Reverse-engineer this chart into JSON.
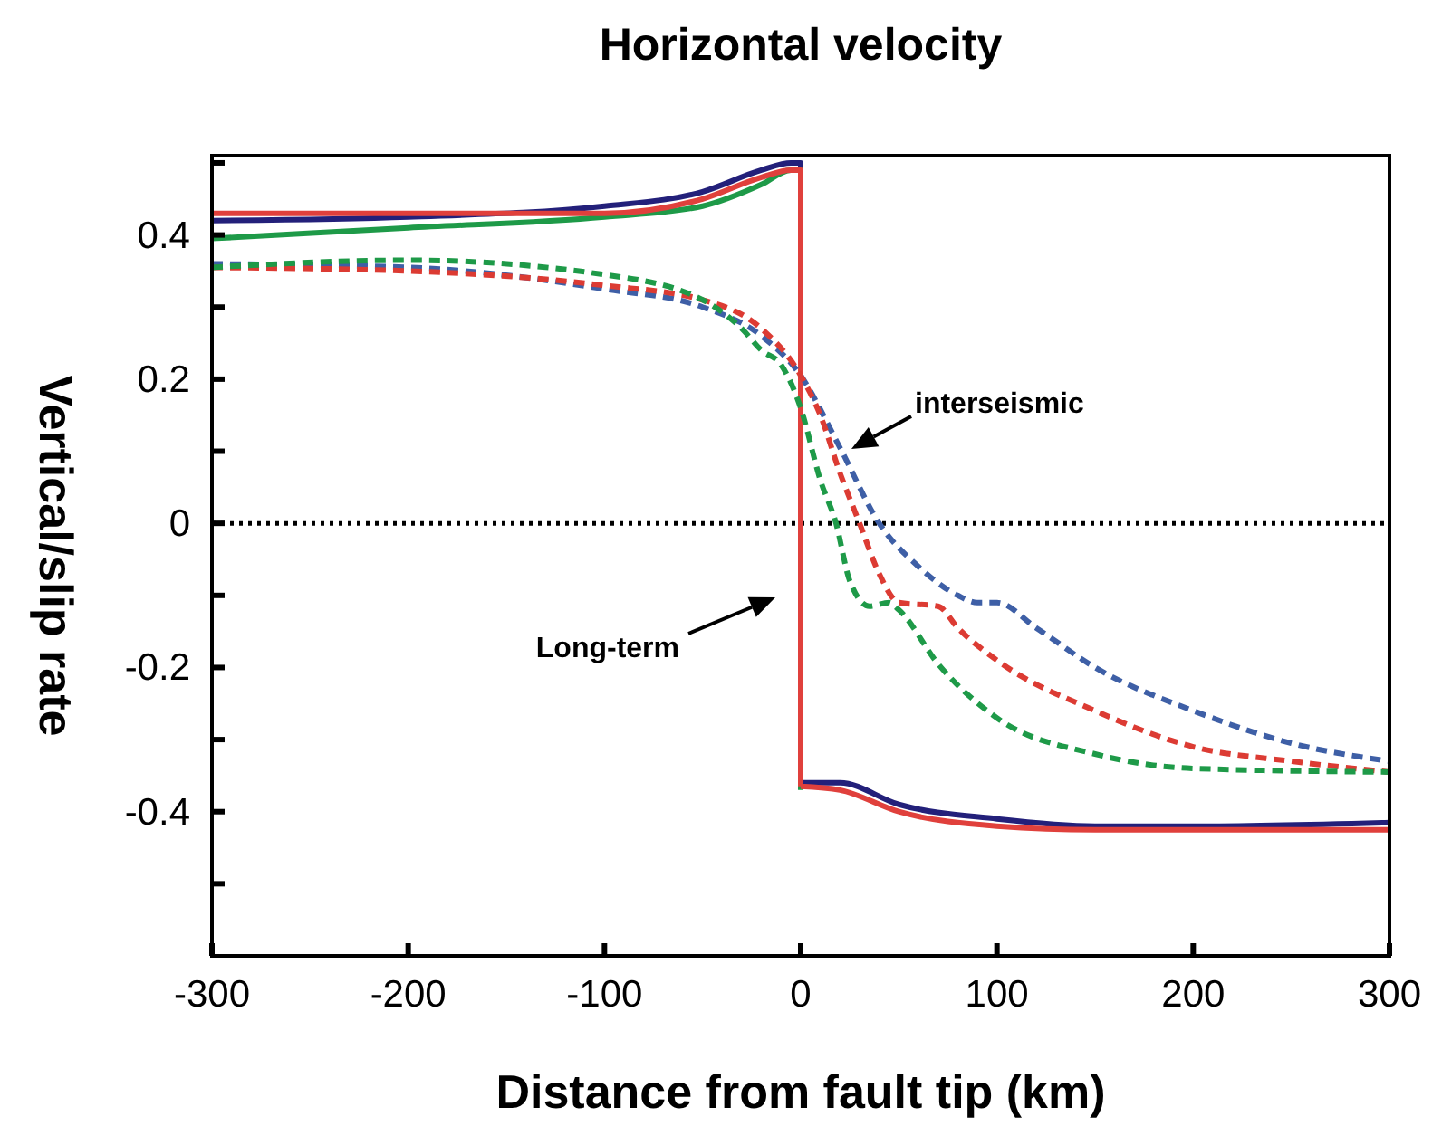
{
  "chart_data": {
    "type": "line",
    "title": "Horizontal velocity",
    "xlabel": "Distance from fault tip (km)",
    "ylabel": "Vertical/slip rate",
    "xlim": [
      -300,
      300
    ],
    "xticks": [
      -300,
      -200,
      -100,
      0,
      100,
      200,
      300
    ],
    "ylim": [
      -0.6,
      0.51
    ],
    "yticks": [
      {
        "value": -0.5,
        "label": null
      },
      {
        "value": -0.4,
        "label": "-0.4"
      },
      {
        "value": -0.3,
        "label": null
      },
      {
        "value": -0.2,
        "label": "-0.2"
      },
      {
        "value": -0.1,
        "label": null
      },
      0,
      {
        "value": 0.1,
        "label": null
      },
      {
        "value": 0.2,
        "label": "0.2"
      },
      {
        "value": 0.3,
        "label": null
      },
      {
        "value": 0.4,
        "label": "0.4"
      },
      {
        "value": 0.5,
        "label": null
      }
    ],
    "grid": false,
    "marker": "none",
    "series": [
      {
        "color": "#23207a",
        "line_style": "solid",
        "x": [
          -300,
          -200,
          -100,
          -50,
          -20,
          -5,
          0,
          0,
          20,
          50,
          100,
          150,
          200,
          300
        ],
        "values": [
          0.42,
          0.425,
          0.44,
          0.46,
          0.49,
          0.5,
          0.5,
          -0.36,
          -0.36,
          -0.39,
          -0.41,
          -0.42,
          -0.42,
          -0.415
        ]
      },
      {
        "color": "#1e9a48",
        "line_style": "solid",
        "x": [
          -300,
          -200,
          -100,
          -50,
          -20,
          -5,
          0,
          0
        ],
        "values": [
          0.395,
          0.41,
          0.425,
          0.44,
          0.47,
          0.49,
          0.49,
          -0.37
        ]
      },
      {
        "color": "#e0403c",
        "line_style": "solid",
        "x": [
          -300,
          -200,
          -100,
          -50,
          -20,
          -5,
          0,
          0,
          20,
          50,
          100,
          150,
          200,
          300
        ],
        "values": [
          0.43,
          0.43,
          0.43,
          0.45,
          0.48,
          0.49,
          0.49,
          -0.365,
          -0.37,
          -0.4,
          -0.42,
          -0.425,
          -0.425,
          -0.425
        ]
      },
      {
        "color": "#3e5fa6",
        "line_style": "dashed",
        "x": [
          -300,
          -200,
          -100,
          -50,
          -20,
          0,
          20,
          40,
          60,
          80,
          90,
          100,
          120,
          150,
          200,
          250,
          300
        ],
        "values": [
          0.36,
          0.355,
          0.325,
          0.3,
          0.26,
          0.205,
          0.105,
          0,
          -0.06,
          -0.1,
          -0.11,
          -0.11,
          -0.145,
          -0.2,
          -0.26,
          -0.305,
          -0.33
        ]
      },
      {
        "color": "#dc3b33",
        "line_style": "dashed",
        "x": [
          -300,
          -200,
          -100,
          -50,
          -20,
          0,
          10,
          20,
          30,
          40,
          50,
          70,
          80,
          100,
          150,
          200,
          250,
          300
        ],
        "values": [
          0.355,
          0.35,
          0.33,
          0.31,
          0.27,
          0.205,
          0.15,
          0.07,
          0,
          -0.07,
          -0.11,
          -0.115,
          -0.145,
          -0.19,
          -0.26,
          -0.31,
          -0.33,
          -0.345
        ]
      },
      {
        "color": "#1e9a48",
        "line_style": "dashed",
        "x": [
          -300,
          -200,
          -100,
          -50,
          -30,
          -20,
          -10,
          0,
          10,
          18,
          25,
          35,
          45,
          50,
          70,
          100,
          150,
          200,
          300
        ],
        "values": [
          0.355,
          0.365,
          0.345,
          0.31,
          0.27,
          0.24,
          0.22,
          0.16,
          0.06,
          0,
          -0.08,
          -0.115,
          -0.11,
          -0.12,
          -0.195,
          -0.27,
          -0.32,
          -0.34,
          -0.345
        ]
      }
    ],
    "ref_lines": [
      {
        "axis": "y",
        "value": 0,
        "color": "#000000",
        "line_style": "dotted"
      }
    ],
    "annotations": [
      "interseismic",
      "Long-term"
    ]
  }
}
